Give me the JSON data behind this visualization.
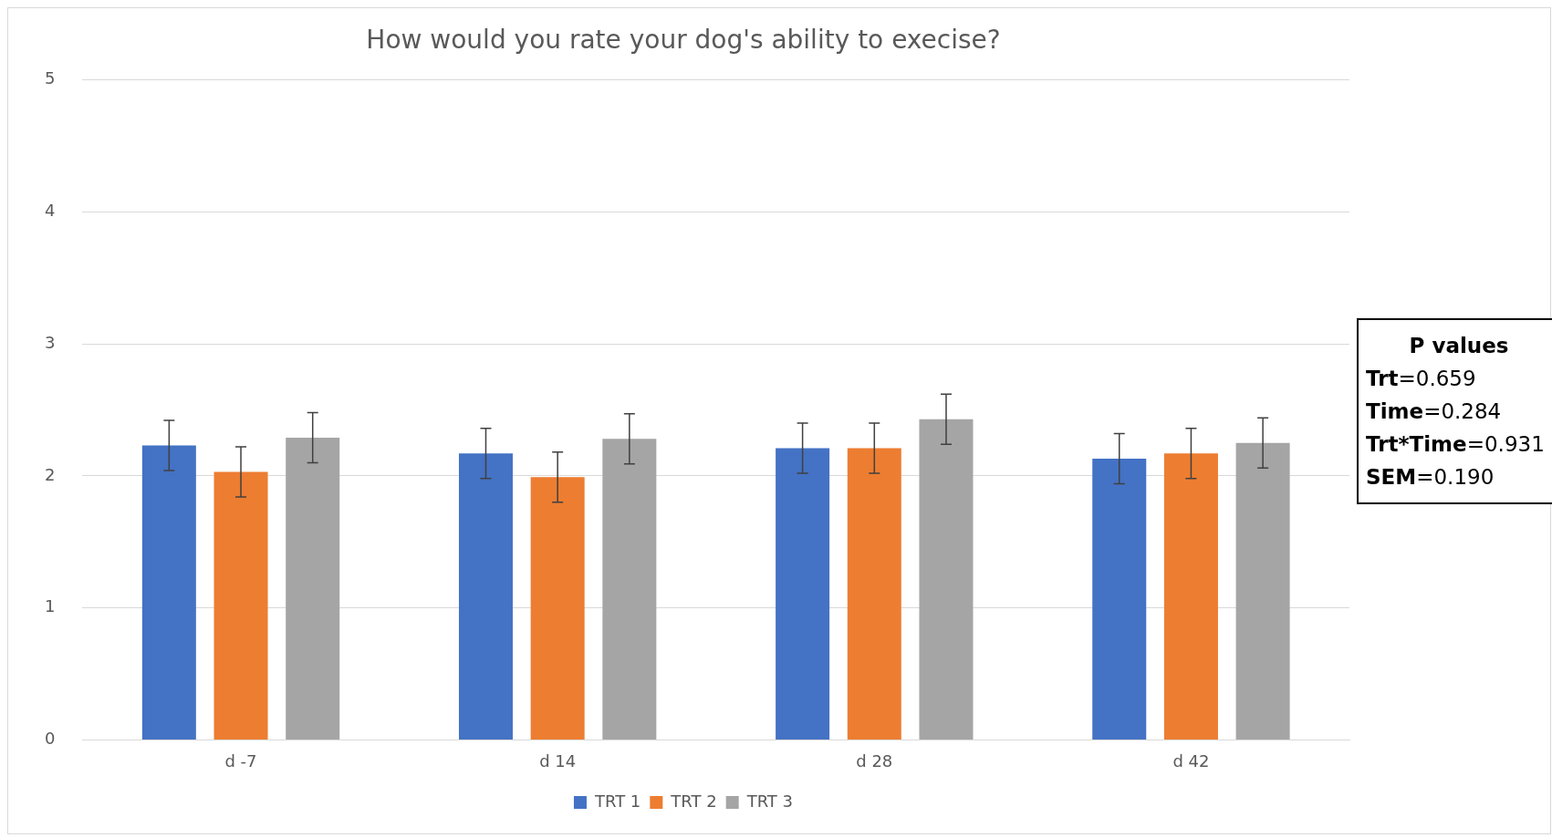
{
  "chart_data": {
    "type": "bar",
    "title": "How would you rate your dog's ability to execise?",
    "categories": [
      "d -7",
      "d 14",
      "d 28",
      "d 42"
    ],
    "series": [
      {
        "name": "TRT 1",
        "color": "#4472c4",
        "values": [
          2.23,
          2.17,
          2.21,
          2.13
        ],
        "errors": [
          0.19,
          0.19,
          0.19,
          0.19
        ]
      },
      {
        "name": "TRT 2",
        "color": "#ed7d31",
        "values": [
          2.03,
          1.99,
          2.21,
          2.17
        ],
        "errors": [
          0.19,
          0.19,
          0.19,
          0.19
        ]
      },
      {
        "name": "TRT 3",
        "color": "#a5a5a5",
        "values": [
          2.29,
          2.28,
          2.43,
          2.25
        ],
        "errors": [
          0.19,
          0.19,
          0.19,
          0.19
        ]
      }
    ],
    "ylim": [
      0,
      5
    ],
    "yticks": [
      0,
      1,
      2,
      3,
      4,
      5
    ],
    "grid": "y",
    "legend": "bottom",
    "annotations": [
      "P values",
      "Trt=0.659",
      "Time=0.284",
      "Trt*Time=0.931",
      "SEM=0.190"
    ]
  }
}
